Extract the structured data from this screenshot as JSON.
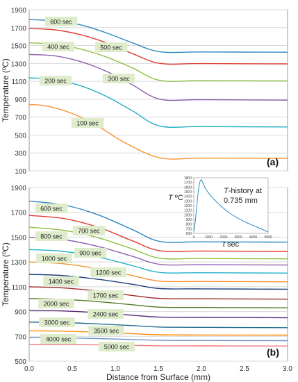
{
  "chart_data": [
    {
      "type": "line",
      "panel_label": "(a)",
      "ylabel": "Temperature (ºC)",
      "ylim": [
        100,
        1900
      ],
      "yticks": [
        100,
        300,
        500,
        700,
        900,
        1100,
        1300,
        1500,
        1700,
        1900
      ],
      "xlim": [
        0,
        3.0
      ],
      "grid": "horizontal",
      "series": [
        {
          "name": "600 sec",
          "color": "#2e86c1",
          "x": [
            0,
            0.3,
            0.6,
            0.9,
            1.2,
            1.52,
            2.0,
            3.0
          ],
          "y": [
            1790,
            1775,
            1730,
            1640,
            1530,
            1430,
            1428,
            1425
          ]
        },
        {
          "name": "500 sec",
          "color": "#e03c31",
          "x": [
            0,
            0.3,
            0.6,
            0.9,
            1.2,
            1.52,
            2.0,
            3.0
          ],
          "y": [
            1690,
            1675,
            1620,
            1530,
            1410,
            1300,
            1298,
            1295
          ]
        },
        {
          "name": "400 sec",
          "color": "#8cbf3f",
          "x": [
            0,
            0.3,
            0.6,
            0.9,
            1.2,
            1.52,
            2.0,
            3.0
          ],
          "y": [
            1530,
            1515,
            1460,
            1370,
            1250,
            1110,
            1108,
            1105
          ]
        },
        {
          "name": "300 sec",
          "color": "#8e5fb3",
          "x": [
            0,
            0.3,
            0.6,
            0.9,
            1.2,
            1.52,
            2.0,
            3.0
          ],
          "y": [
            1400,
            1385,
            1320,
            1210,
            1060,
            900,
            895,
            890
          ]
        },
        {
          "name": "200 sec",
          "color": "#1fb0c8",
          "x": [
            0,
            0.3,
            0.6,
            0.9,
            1.2,
            1.52,
            2.0,
            3.0
          ],
          "y": [
            1140,
            1120,
            1050,
            930,
            770,
            600,
            595,
            590
          ]
        },
        {
          "name": "100 sec",
          "color": "#f5922f",
          "x": [
            0,
            0.2,
            0.5,
            0.8,
            1.1,
            1.52,
            2.0,
            3.0
          ],
          "y": [
            840,
            825,
            740,
            600,
            420,
            245,
            242,
            240
          ]
        }
      ]
    },
    {
      "type": "line",
      "panel_label": "(b)",
      "xlabel": "Distance from Surface (mm)",
      "ylabel": "Temperature (ºC)",
      "ylim": [
        500,
        1900
      ],
      "yticks": [
        500,
        700,
        900,
        1100,
        1300,
        1500,
        1700,
        1900
      ],
      "xlim": [
        0,
        3.0
      ],
      "xticks": [
        "0.0",
        "0.5",
        "1.0",
        "1.5",
        "2.0",
        "2.5",
        "3.0"
      ],
      "grid": "horizontal",
      "series": [
        {
          "name": "600 sec",
          "color": "#2e86c1",
          "x": [
            0,
            0.4,
            0.8,
            1.2,
            1.52,
            2.0,
            3.0
          ],
          "y": [
            1790,
            1760,
            1680,
            1560,
            1465,
            1462,
            1460
          ]
        },
        {
          "name": "700 sec",
          "color": "#e03c31",
          "x": [
            0,
            0.4,
            0.8,
            1.2,
            1.52,
            2.0,
            3.0
          ],
          "y": [
            1675,
            1650,
            1580,
            1470,
            1390,
            1388,
            1385
          ]
        },
        {
          "name": "800 sec",
          "color": "#8cbf3f",
          "x": [
            0,
            0.4,
            0.8,
            1.2,
            1.52,
            2.0,
            3.0
          ],
          "y": [
            1580,
            1555,
            1495,
            1405,
            1330,
            1328,
            1325
          ]
        },
        {
          "name": "900 sec",
          "color": "#8e5fb3",
          "x": [
            0,
            0.4,
            0.8,
            1.2,
            1.52,
            2.0,
            3.0
          ],
          "y": [
            1500,
            1480,
            1425,
            1345,
            1280,
            1278,
            1275
          ]
        },
        {
          "name": "1000 sec",
          "color": "#1fb0c8",
          "x": [
            0,
            0.4,
            0.8,
            1.2,
            1.52,
            2.0,
            3.0
          ],
          "y": [
            1400,
            1385,
            1340,
            1270,
            1215,
            1213,
            1210
          ]
        },
        {
          "name": "1200 sec",
          "color": "#f5922f",
          "x": [
            0,
            0.4,
            0.8,
            1.2,
            1.52,
            2.0,
            3.0
          ],
          "y": [
            1300,
            1285,
            1245,
            1190,
            1145,
            1143,
            1140
          ]
        },
        {
          "name": "1400 sec",
          "color": "#1f3f7a",
          "x": [
            0,
            0.4,
            0.8,
            1.2,
            1.52,
            2.0,
            3.0
          ],
          "y": [
            1200,
            1190,
            1160,
            1120,
            1085,
            1083,
            1080
          ]
        },
        {
          "name": "1700 sec",
          "color": "#a32a2a",
          "x": [
            0,
            0.4,
            0.8,
            1.2,
            1.52,
            2.0,
            3.0
          ],
          "y": [
            1100,
            1090,
            1065,
            1030,
            1005,
            1003,
            1000
          ]
        },
        {
          "name": "2000 sec",
          "color": "#4e7a25",
          "x": [
            0,
            0.4,
            0.8,
            1.2,
            1.52,
            2.0,
            3.0
          ],
          "y": [
            1005,
            998,
            980,
            955,
            935,
            933,
            930
          ]
        },
        {
          "name": "2400 sec",
          "color": "#5a2d7a",
          "x": [
            0,
            0.4,
            0.8,
            1.2,
            1.52,
            2.0,
            3.0
          ],
          "y": [
            910,
            905,
            890,
            870,
            855,
            853,
            850
          ]
        },
        {
          "name": "3000 sec",
          "color": "#1f6f8b",
          "x": [
            0,
            0.4,
            0.8,
            1.2,
            1.52,
            2.0,
            3.0
          ],
          "y": [
            815,
            811,
            800,
            787,
            775,
            773,
            770
          ]
        },
        {
          "name": "3500 sec",
          "color": "#ff8a00",
          "x": [
            0,
            0.4,
            0.8,
            1.2,
            1.52,
            2.0,
            3.0
          ],
          "y": [
            745,
            742,
            733,
            722,
            713,
            711,
            710
          ]
        },
        {
          "name": "4000 sec",
          "color": "#6a8fd0",
          "x": [
            0,
            0.4,
            0.8,
            1.2,
            1.52,
            2.0,
            3.0
          ],
          "y": [
            690,
            688,
            682,
            674,
            668,
            667,
            665
          ]
        },
        {
          "name": "5000 sec",
          "color": "#f07a7a",
          "x": [
            0,
            0.4,
            0.8,
            1.2,
            1.52,
            2.0,
            3.0
          ],
          "y": [
            635,
            634,
            631,
            627,
            624,
            623,
            622
          ]
        }
      ]
    },
    {
      "type": "line",
      "inset": true,
      "title_prefix": "T",
      "title_suffix": "-history at",
      "title_line2": "0.735 mm",
      "ylabel_prefix": "T",
      "ylabel_suffix": " ºC",
      "xlabel_prefix": "t",
      "xlabel_suffix": " sec",
      "ylim": [
        600,
        1800
      ],
      "yticks": [
        600,
        700,
        800,
        900,
        1000,
        1100,
        1200,
        1300,
        1400,
        1500,
        1600,
        1700,
        1800
      ],
      "xlim": [
        0,
        5000
      ],
      "xticks": [
        0,
        1000,
        2000,
        3000,
        4000,
        5000
      ],
      "series": [
        {
          "color": "#2e86c1",
          "x": [
            0,
            100,
            200,
            300,
            400,
            500,
            600,
            700,
            800,
            1000,
            1200,
            1500,
            2000,
            2500,
            3000,
            3500,
            4000,
            4500,
            5000
          ],
          "y": [
            650,
            850,
            1200,
            1500,
            1700,
            1760,
            1700,
            1620,
            1560,
            1470,
            1390,
            1290,
            1140,
            1020,
            920,
            840,
            770,
            700,
            630
          ]
        }
      ]
    }
  ]
}
